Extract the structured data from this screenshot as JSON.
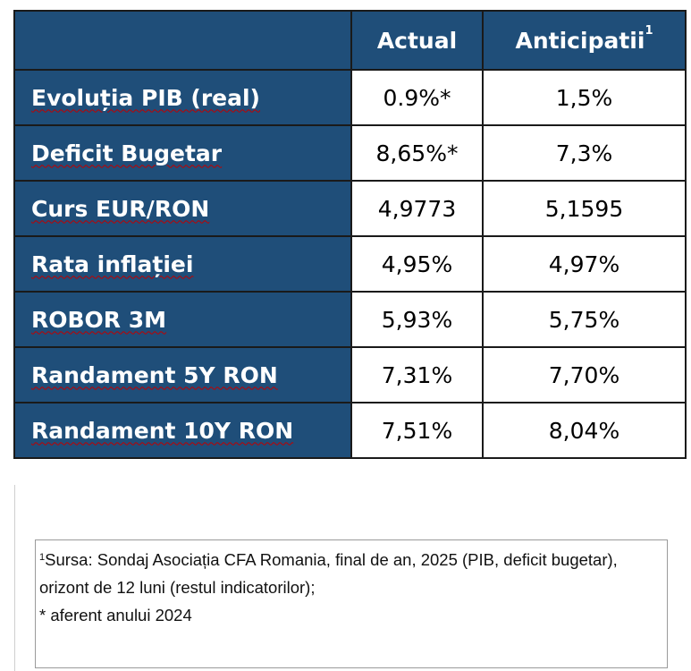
{
  "table": {
    "header": {
      "actual": "Actual",
      "anticipated": "Anticipatii",
      "anticipated_sup": "1"
    },
    "rows": [
      {
        "label": "Evoluția PIB (real)",
        "actual": "0.9%*",
        "anticipated": "1,5%"
      },
      {
        "label": "Deficit Bugetar",
        "actual": "8,65%*",
        "anticipated": "7,3%"
      },
      {
        "label": "Curs EUR/RON",
        "actual": "4,9773",
        "anticipated": "5,1595"
      },
      {
        "label": "Rata inflației",
        "actual": "4,95%",
        "anticipated": "4,97%"
      },
      {
        "label": "ROBOR 3M",
        "actual": "5,93%",
        "anticipated": "5,75%"
      },
      {
        "label": "Randament 5Y RON",
        "actual": "7,31%",
        "anticipated": "7,70%"
      },
      {
        "label": "Randament 10Y RON",
        "actual": "7,51%",
        "anticipated": "8,04%"
      }
    ]
  },
  "footnote": {
    "marker": "1",
    "source": "Sursa: Sondaj Asociația CFA Romania, final de an, 2025 (PIB, deficit bugetar), orizont de 12 luni (restul indicatorilor);",
    "asterisk_note": "* aferent anului 2024"
  },
  "colors": {
    "header_blue": "#1f4e79",
    "spell_underline": "#c00000"
  }
}
